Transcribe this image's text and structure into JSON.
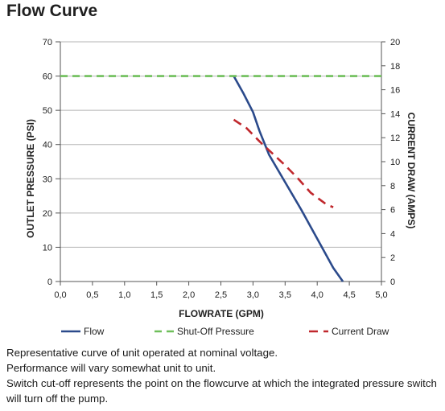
{
  "chart_data": {
    "type": "line",
    "title": "Flow Curve",
    "xlabel": "FLOWRATE (GPM)",
    "ylabel": "OUTLET PRESSURE (PSI)",
    "y2label": "CURRENT DRAW (AMPS)",
    "xlim": [
      0,
      5
    ],
    "ylim": [
      0,
      70
    ],
    "y2lim": [
      0,
      20
    ],
    "x_ticks": [
      "0,0",
      "0,5",
      "1,0",
      "1,5",
      "2,0",
      "2,5",
      "3,0",
      "3,5",
      "4,0",
      "4,5",
      "5,0"
    ],
    "y_ticks": [
      "0",
      "10",
      "20",
      "30",
      "40",
      "50",
      "60",
      "70"
    ],
    "y2_ticks": [
      "0",
      "2",
      "4",
      "6",
      "8",
      "10",
      "12",
      "14",
      "16",
      "18",
      "20"
    ],
    "grid": "horizontal",
    "legend_position": "bottom",
    "series": [
      {
        "name": "Flow",
        "axis": "left",
        "style": "solid",
        "color": "#2b4a8b",
        "points": [
          [
            2.7,
            60
          ],
          [
            2.85,
            55
          ],
          [
            3.0,
            49.5
          ],
          [
            3.1,
            44
          ],
          [
            3.25,
            37
          ],
          [
            3.5,
            29
          ],
          [
            3.75,
            21
          ],
          [
            4.0,
            12.5
          ],
          [
            4.25,
            4
          ],
          [
            4.4,
            0
          ]
        ]
      },
      {
        "name": "Shut-Off Pressure",
        "axis": "left",
        "style": "dashed",
        "color": "#6fbf5a",
        "points": [
          [
            0,
            60
          ],
          [
            5,
            60
          ]
        ]
      },
      {
        "name": "Current Draw",
        "axis": "right",
        "style": "dashed",
        "color": "#c0282d",
        "points": [
          [
            2.7,
            13.5
          ],
          [
            2.9,
            12.8
          ],
          [
            3.1,
            11.7
          ],
          [
            3.3,
            10.7
          ],
          [
            3.5,
            9.7
          ],
          [
            3.7,
            8.6
          ],
          [
            3.9,
            7.4
          ],
          [
            4.05,
            6.8
          ],
          [
            4.15,
            6.4
          ],
          [
            4.25,
            6.2
          ]
        ]
      }
    ]
  },
  "notes": [
    "Representative curve of unit operated at nominal voltage.",
    "Performance will vary somewhat unit to unit.",
    "Switch cut-off represents the point on the flowcurve at which the integrated pressure switch will turn off the pump."
  ]
}
